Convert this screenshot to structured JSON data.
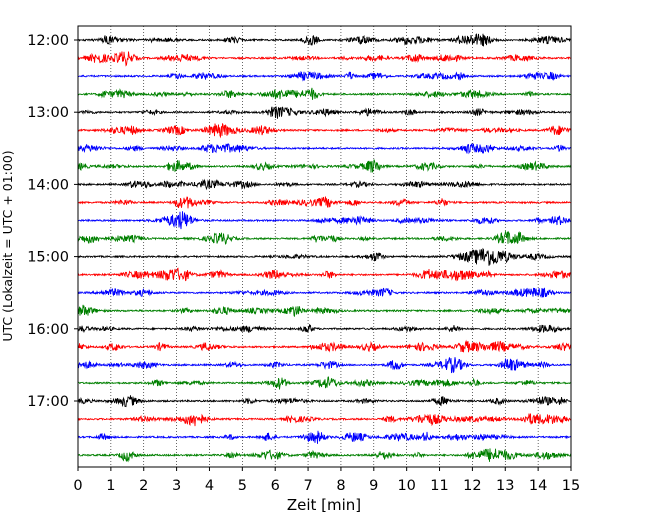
{
  "chart_data": {
    "type": "line",
    "xlabel": "Zeit  [min]",
    "ylabel": "UTC (Lokalzeit = UTC + 01:00)",
    "xlim": [
      0,
      15
    ],
    "x_ticks": [
      "0",
      "1",
      "2",
      "3",
      "4",
      "5",
      "6",
      "7",
      "8",
      "9",
      "10",
      "11",
      "12",
      "13",
      "14",
      "15"
    ],
    "y_ticks": [
      "12:00",
      "13:00",
      "14:00",
      "15:00",
      "16:00",
      "17:00"
    ],
    "grid": "vertical dotted lines at each minute",
    "trace_start": "12:00",
    "trace_interval_min": 15,
    "trace_count": 24,
    "series_colors": [
      "#000000",
      "#ff0000",
      "#0000ff",
      "#008000"
    ]
  }
}
